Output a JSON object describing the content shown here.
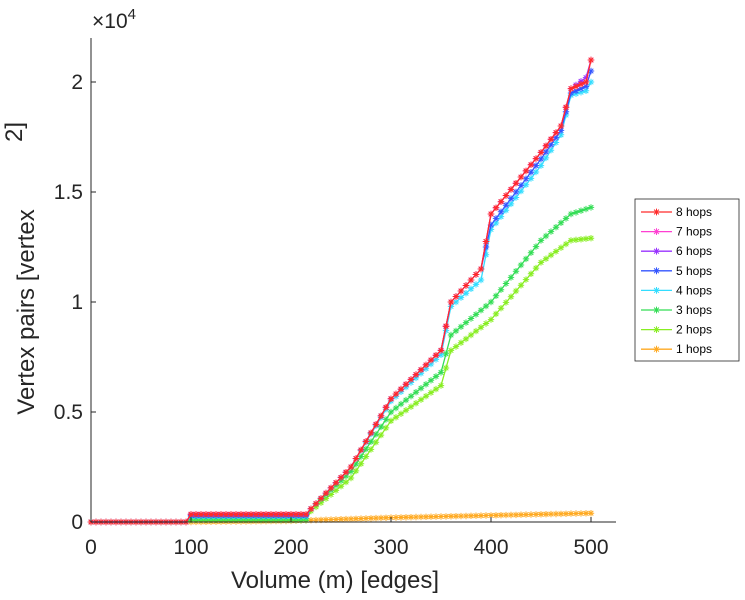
{
  "chart_data": {
    "type": "line",
    "title": "",
    "xlabel": "Volume (m) [edges]",
    "ylabel": "Vertex pairs [vertex",
    "ylabel_exponent": "2]",
    "y_multiplier_base": "×10",
    "y_multiplier_exp": "4",
    "xlim": [
      0,
      525
    ],
    "ylim": [
      0,
      22000
    ],
    "xticks": [
      0,
      100,
      200,
      300,
      400,
      500
    ],
    "xtick_labels": [
      "0",
      "100",
      "200",
      "300",
      "400",
      "500"
    ],
    "yticks": [
      0,
      5000,
      10000,
      15000,
      20000
    ],
    "ytick_labels": [
      "0",
      "0.5",
      "1",
      "1.5",
      "2"
    ],
    "grid": false,
    "legend_position": "right",
    "marker": "asterisk",
    "series": [
      {
        "name": "8 hops",
        "color": "#ff2a2a",
        "points": [
          [
            0,
            0
          ],
          [
            95,
            0
          ],
          [
            100,
            350
          ],
          [
            215,
            350
          ],
          [
            220,
            600
          ],
          [
            260,
            2500
          ],
          [
            300,
            5600
          ],
          [
            350,
            7800
          ],
          [
            360,
            10000
          ],
          [
            390,
            11500
          ],
          [
            400,
            14000
          ],
          [
            450,
            16800
          ],
          [
            470,
            18000
          ],
          [
            480,
            19700
          ],
          [
            495,
            20000
          ],
          [
            500,
            21000
          ]
        ]
      },
      {
        "name": "7 hops",
        "color": "#ff3fd2",
        "points": [
          [
            0,
            0
          ],
          [
            95,
            0
          ],
          [
            100,
            350
          ],
          [
            215,
            350
          ],
          [
            220,
            600
          ],
          [
            260,
            2500
          ],
          [
            300,
            5600
          ],
          [
            350,
            7800
          ],
          [
            360,
            10000
          ],
          [
            390,
            11500
          ],
          [
            400,
            14000
          ],
          [
            450,
            16800
          ],
          [
            470,
            18000
          ],
          [
            480,
            19700
          ],
          [
            495,
            20000
          ],
          [
            500,
            21000
          ]
        ]
      },
      {
        "name": "6 hops",
        "color": "#9933ff",
        "points": [
          [
            0,
            0
          ],
          [
            95,
            0
          ],
          [
            100,
            350
          ],
          [
            215,
            350
          ],
          [
            220,
            600
          ],
          [
            260,
            2500
          ],
          [
            300,
            5600
          ],
          [
            350,
            7800
          ],
          [
            360,
            10000
          ],
          [
            390,
            11500
          ],
          [
            400,
            14000
          ],
          [
            450,
            16800
          ],
          [
            470,
            18000
          ],
          [
            480,
            19700
          ],
          [
            495,
            20200
          ],
          [
            500,
            21000
          ]
        ]
      },
      {
        "name": "5 hops",
        "color": "#3355ff",
        "points": [
          [
            0,
            0
          ],
          [
            95,
            0
          ],
          [
            100,
            300
          ],
          [
            215,
            300
          ],
          [
            220,
            600
          ],
          [
            260,
            2500
          ],
          [
            300,
            5600
          ],
          [
            350,
            7800
          ],
          [
            360,
            10000
          ],
          [
            390,
            11500
          ],
          [
            400,
            13500
          ],
          [
            450,
            16500
          ],
          [
            470,
            17800
          ],
          [
            480,
            19500
          ],
          [
            495,
            19800
          ],
          [
            500,
            20500
          ]
        ]
      },
      {
        "name": "4 hops",
        "color": "#33ddff",
        "points": [
          [
            0,
            0
          ],
          [
            95,
            0
          ],
          [
            100,
            250
          ],
          [
            215,
            250
          ],
          [
            220,
            600
          ],
          [
            260,
            2500
          ],
          [
            300,
            5500
          ],
          [
            350,
            7600
          ],
          [
            360,
            9800
          ],
          [
            390,
            11000
          ],
          [
            400,
            13300
          ],
          [
            450,
            16200
          ],
          [
            470,
            17600
          ],
          [
            480,
            19400
          ],
          [
            495,
            19600
          ],
          [
            500,
            20000
          ]
        ]
      },
      {
        "name": "3 hops",
        "color": "#33dd55",
        "points": [
          [
            0,
            0
          ],
          [
            95,
            0
          ],
          [
            100,
            150
          ],
          [
            215,
            150
          ],
          [
            220,
            600
          ],
          [
            260,
            2300
          ],
          [
            300,
            5000
          ],
          [
            350,
            6800
          ],
          [
            360,
            8500
          ],
          [
            400,
            10000
          ],
          [
            450,
            12800
          ],
          [
            480,
            14000
          ],
          [
            500,
            14300
          ]
        ]
      },
      {
        "name": "2 hops",
        "color": "#88ee22",
        "points": [
          [
            0,
            0
          ],
          [
            95,
            0
          ],
          [
            100,
            80
          ],
          [
            215,
            80
          ],
          [
            220,
            500
          ],
          [
            260,
            2000
          ],
          [
            300,
            4600
          ],
          [
            350,
            6200
          ],
          [
            360,
            7800
          ],
          [
            400,
            9200
          ],
          [
            450,
            11800
          ],
          [
            480,
            12800
          ],
          [
            500,
            12900
          ]
        ]
      },
      {
        "name": "1 hops",
        "color": "#ffaa22",
        "points": [
          [
            0,
            0
          ],
          [
            100,
            0
          ],
          [
            200,
            50
          ],
          [
            300,
            200
          ],
          [
            400,
            300
          ],
          [
            500,
            400
          ]
        ]
      }
    ]
  }
}
